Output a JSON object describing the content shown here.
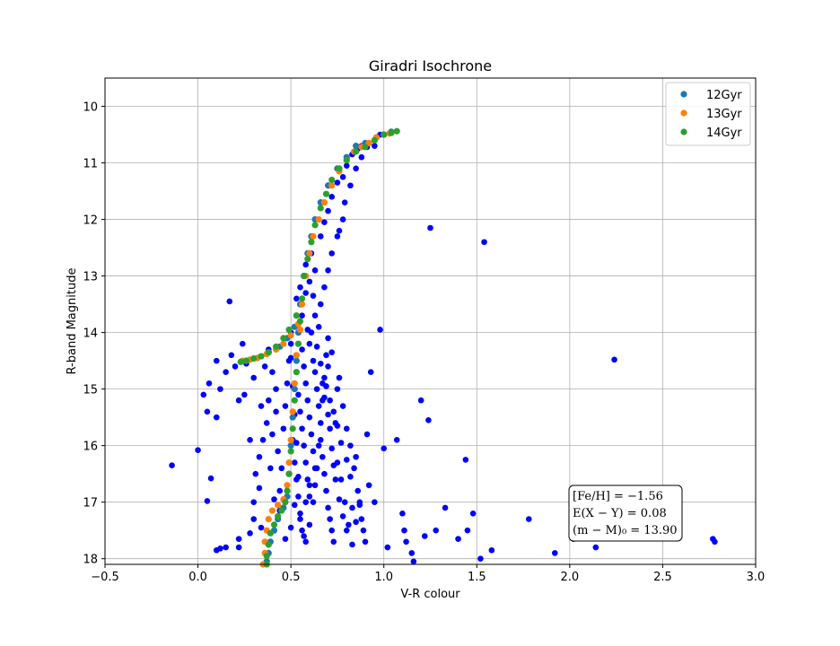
{
  "chart_data": {
    "type": "scatter",
    "title": "Giradri Isochrone",
    "xlabel": "V-R colour",
    "ylabel": "R-band Magnitude",
    "xlim": [
      -0.5,
      3.0
    ],
    "ylim": [
      18.1,
      9.5
    ],
    "y_inverted": true,
    "grid": true,
    "xticks": [
      "−0.5",
      "0.0",
      "0.5",
      "1.0",
      "1.5",
      "2.0",
      "2.5",
      "3.0"
    ],
    "xtick_values": [
      -0.5,
      0.0,
      0.5,
      1.0,
      1.5,
      2.0,
      2.5,
      3.0
    ],
    "yticks": [
      "10",
      "11",
      "12",
      "13",
      "14",
      "15",
      "16",
      "17",
      "18"
    ],
    "ytick_values": [
      10,
      11,
      12,
      13,
      14,
      15,
      16,
      17,
      18
    ],
    "legend_position": "top-right",
    "legend": [
      {
        "label": "12Gyr",
        "color": "#1f77b4"
      },
      {
        "label": "13Gyr",
        "color": "#ff7f0e"
      },
      {
        "label": "14Gyr",
        "color": "#2ca02c"
      }
    ],
    "annotation_lines": [
      "[Fe/H] = −1.56",
      "E(X − Y) = 0.08",
      "(m − M)₀ = 13.90"
    ],
    "annotation_position": "bottom-right",
    "observed_color": "#0000ff",
    "observed_points": [
      [
        0.17,
        13.45
      ],
      [
        0.06,
        14.9
      ],
      [
        0.1,
        14.5
      ],
      [
        0.03,
        15.1
      ],
      [
        0.12,
        15.0
      ],
      [
        0.2,
        14.6
      ],
      [
        0.15,
        14.7
      ],
      [
        0.25,
        15.1
      ],
      [
        0.3,
        14.8
      ],
      [
        0.05,
        15.4
      ],
      [
        0.1,
        15.5
      ],
      [
        0.22,
        15.2
      ],
      [
        0.18,
        14.4
      ],
      [
        0.24,
        14.2
      ],
      [
        0.26,
        14.55
      ],
      [
        0.28,
        15.9
      ],
      [
        0.0,
        16.08
      ],
      [
        -0.14,
        16.35
      ],
      [
        0.07,
        16.58
      ],
      [
        0.05,
        16.98
      ],
      [
        0.1,
        17.85
      ],
      [
        0.12,
        17.82
      ],
      [
        0.15,
        17.8
      ],
      [
        0.22,
        17.65
      ],
      [
        0.22,
        17.8
      ],
      [
        0.28,
        17.55
      ],
      [
        0.3,
        17.3
      ],
      [
        0.34,
        17.45
      ],
      [
        0.31,
        16.5
      ],
      [
        0.33,
        16.2
      ],
      [
        0.33,
        16.75
      ],
      [
        0.3,
        17.0
      ],
      [
        0.35,
        15.9
      ],
      [
        0.37,
        15.6
      ],
      [
        0.38,
        15.2
      ],
      [
        0.36,
        14.6
      ],
      [
        0.38,
        14.3
      ],
      [
        0.4,
        14.7
      ],
      [
        0.42,
        15.0
      ],
      [
        0.42,
        15.4
      ],
      [
        0.4,
        15.8
      ],
      [
        0.43,
        16.1
      ],
      [
        0.45,
        16.4
      ],
      [
        0.44,
        16.8
      ],
      [
        0.46,
        15.7
      ],
      [
        0.47,
        15.3
      ],
      [
        0.48,
        14.9
      ],
      [
        0.49,
        14.5
      ],
      [
        0.5,
        14.2
      ],
      [
        0.5,
        14.0
      ],
      [
        0.51,
        15.9
      ],
      [
        0.52,
        16.3
      ],
      [
        0.53,
        16.6
      ],
      [
        0.54,
        16.9
      ],
      [
        0.55,
        17.2
      ],
      [
        0.56,
        17.5
      ],
      [
        0.58,
        17.7
      ],
      [
        0.6,
        17.4
      ],
      [
        0.62,
        17.0
      ],
      [
        0.63,
        16.7
      ],
      [
        0.64,
        16.4
      ],
      [
        0.65,
        16.0
      ],
      [
        0.66,
        15.6
      ],
      [
        0.67,
        15.2
      ],
      [
        0.68,
        14.8
      ],
      [
        0.69,
        14.4
      ],
      [
        0.7,
        14.1
      ],
      [
        0.56,
        14.3
      ],
      [
        0.57,
        14.6
      ],
      [
        0.58,
        14.9
      ],
      [
        0.59,
        15.2
      ],
      [
        0.6,
        15.5
      ],
      [
        0.61,
        15.8
      ],
      [
        0.62,
        16.1
      ],
      [
        0.63,
        16.4
      ],
      [
        0.6,
        16.7
      ],
      [
        0.58,
        17.0
      ],
      [
        0.55,
        17.3
      ],
      [
        0.57,
        17.6
      ],
      [
        0.54,
        15.1
      ],
      [
        0.55,
        15.4
      ],
      [
        0.56,
        15.7
      ],
      [
        0.57,
        16.0
      ],
      [
        0.58,
        16.3
      ],
      [
        0.59,
        16.6
      ],
      [
        0.6,
        16.9
      ],
      [
        0.61,
        14.0
      ],
      [
        0.62,
        14.5
      ],
      [
        0.63,
        14.7
      ],
      [
        0.64,
        15.0
      ],
      [
        0.65,
        15.3
      ],
      [
        0.66,
        15.9
      ],
      [
        0.67,
        16.2
      ],
      [
        0.68,
        16.5
      ],
      [
        0.69,
        16.8
      ],
      [
        0.7,
        17.1
      ],
      [
        0.71,
        17.3
      ],
      [
        0.72,
        17.5
      ],
      [
        0.73,
        17.7
      ],
      [
        0.74,
        15.6
      ],
      [
        0.75,
        15.0
      ],
      [
        0.76,
        14.8
      ],
      [
        0.78,
        15.3
      ],
      [
        0.8,
        15.7
      ],
      [
        0.82,
        16.0
      ],
      [
        0.84,
        16.4
      ],
      [
        0.86,
        16.8
      ],
      [
        0.88,
        17.3
      ],
      [
        0.9,
        17.7
      ],
      [
        0.92,
        16.7
      ],
      [
        0.95,
        17.0
      ],
      [
        0.75,
        16.3
      ],
      [
        0.77,
        16.6
      ],
      [
        0.79,
        17.0
      ],
      [
        0.81,
        17.4
      ],
      [
        0.83,
        17.1
      ],
      [
        0.85,
        16.2
      ],
      [
        0.87,
        17.0
      ],
      [
        0.89,
        17.5
      ],
      [
        0.91,
        15.8
      ],
      [
        0.93,
        14.7
      ],
      [
        0.98,
        13.95
      ],
      [
        1.0,
        16.05
      ],
      [
        1.02,
        17.8
      ],
      [
        1.07,
        15.9
      ],
      [
        1.1,
        17.2
      ],
      [
        1.11,
        17.5
      ],
      [
        1.12,
        17.7
      ],
      [
        1.15,
        17.9
      ],
      [
        1.16,
        18.05
      ],
      [
        1.2,
        15.2
      ],
      [
        1.22,
        17.6
      ],
      [
        1.24,
        15.55
      ],
      [
        1.25,
        12.15
      ],
      [
        1.28,
        17.5
      ],
      [
        1.33,
        17.1
      ],
      [
        1.4,
        17.65
      ],
      [
        1.44,
        16.25
      ],
      [
        1.45,
        17.5
      ],
      [
        1.48,
        17.2
      ],
      [
        1.52,
        18.0
      ],
      [
        1.54,
        12.4
      ],
      [
        1.58,
        17.85
      ],
      [
        1.78,
        17.3
      ],
      [
        1.92,
        17.9
      ],
      [
        2.02,
        17.65
      ],
      [
        2.14,
        17.8
      ],
      [
        2.24,
        14.48
      ],
      [
        2.77,
        17.65
      ],
      [
        2.78,
        17.7
      ],
      [
        0.34,
        15.3
      ],
      [
        0.39,
        16.4
      ],
      [
        0.41,
        16.95
      ],
      [
        0.44,
        17.15
      ],
      [
        0.47,
        17.65
      ],
      [
        0.5,
        17.45
      ],
      [
        0.52,
        17.05
      ],
      [
        0.54,
        16.55
      ],
      [
        0.53,
        15.95
      ],
      [
        0.52,
        15.45
      ],
      [
        0.51,
        14.95
      ],
      [
        0.5,
        14.45
      ],
      [
        0.65,
        13.9
      ],
      [
        0.63,
        13.7
      ],
      [
        0.62,
        13.35
      ],
      [
        0.58,
        13.3
      ],
      [
        0.55,
        13.2
      ],
      [
        0.53,
        13.4
      ],
      [
        0.56,
        13.7
      ],
      [
        0.59,
        13.95
      ],
      [
        0.6,
        14.2
      ],
      [
        0.64,
        14.25
      ],
      [
        0.66,
        14.55
      ],
      [
        0.67,
        14.9
      ],
      [
        0.68,
        15.15
      ],
      [
        0.7,
        15.45
      ],
      [
        0.71,
        15.7
      ],
      [
        0.72,
        16.05
      ],
      [
        0.73,
        16.35
      ],
      [
        0.74,
        16.6
      ],
      [
        0.76,
        16.95
      ],
      [
        0.78,
        17.25
      ],
      [
        0.8,
        17.5
      ],
      [
        0.83,
        17.75
      ],
      [
        0.85,
        17.35
      ],
      [
        0.87,
        17.05
      ],
      [
        0.72,
        14.35
      ],
      [
        0.7,
        14.6
      ],
      [
        0.69,
        14.95
      ],
      [
        0.71,
        15.2
      ],
      [
        0.73,
        15.4
      ],
      [
        0.75,
        15.65
      ],
      [
        0.77,
        15.95
      ],
      [
        0.8,
        16.25
      ],
      [
        0.82,
        16.55
      ],
      [
        0.75,
        12.3
      ],
      [
        0.72,
        12.6
      ],
      [
        0.7,
        12.9
      ],
      [
        0.68,
        13.2
      ],
      [
        0.66,
        13.5
      ],
      [
        0.79,
        11.7
      ],
      [
        0.82,
        11.4
      ],
      [
        0.85,
        11.1
      ],
      [
        0.88,
        10.9
      ],
      [
        0.78,
        12.0
      ],
      [
        0.76,
        12.2
      ],
      [
        0.8,
        11.05
      ],
      [
        0.61,
        12.6
      ],
      [
        0.63,
        12.9
      ],
      [
        0.6,
        13.1
      ],
      [
        0.58,
        12.8
      ],
      [
        0.66,
        12.3
      ],
      [
        0.68,
        12.05
      ],
      [
        0.7,
        11.85
      ],
      [
        0.72,
        11.6
      ],
      [
        0.75,
        11.35
      ],
      [
        0.78,
        11.25
      ],
      [
        0.83,
        10.85
      ],
      [
        0.86,
        10.75
      ],
      [
        0.88,
        10.7
      ],
      [
        0.91,
        10.72
      ],
      [
        0.95,
        10.7
      ],
      [
        0.98,
        10.5
      ]
    ],
    "series": [
      {
        "name": "12Gyr",
        "color": "#1f77b4",
        "points": [
          [
            0.37,
            18.05
          ],
          [
            0.38,
            17.9
          ],
          [
            0.39,
            17.7
          ],
          [
            0.41,
            17.5
          ],
          [
            0.43,
            17.3
          ],
          [
            0.46,
            17.1
          ],
          [
            0.48,
            16.9
          ],
          [
            0.49,
            16.5
          ],
          [
            0.5,
            16.0
          ],
          [
            0.51,
            15.5
          ],
          [
            0.52,
            15.0
          ],
          [
            0.53,
            14.5
          ],
          [
            0.54,
            14.0
          ],
          [
            0.55,
            13.5
          ],
          [
            0.57,
            13.0
          ],
          [
            0.59,
            12.6
          ],
          [
            0.61,
            12.3
          ],
          [
            0.63,
            12.0
          ],
          [
            0.66,
            11.7
          ],
          [
            0.7,
            11.4
          ],
          [
            0.75,
            11.1
          ],
          [
            0.8,
            10.9
          ],
          [
            0.85,
            10.7
          ],
          [
            0.9,
            10.65
          ],
          [
            0.96,
            10.55
          ],
          [
            1.0,
            10.5
          ],
          [
            1.04,
            10.45
          ],
          [
            0.52,
            13.9
          ],
          [
            0.48,
            14.1
          ],
          [
            0.44,
            14.25
          ],
          [
            0.38,
            14.35
          ],
          [
            0.32,
            14.45
          ],
          [
            0.26,
            14.5
          ]
        ]
      },
      {
        "name": "13Gyr",
        "color": "#ff7f0e",
        "points": [
          [
            0.35,
            18.1
          ],
          [
            0.36,
            17.9
          ],
          [
            0.36,
            17.7
          ],
          [
            0.37,
            17.5
          ],
          [
            0.38,
            17.3
          ],
          [
            0.4,
            17.15
          ],
          [
            0.43,
            17.05
          ],
          [
            0.46,
            16.95
          ],
          [
            0.48,
            16.7
          ],
          [
            0.49,
            16.3
          ],
          [
            0.5,
            15.9
          ],
          [
            0.51,
            15.4
          ],
          [
            0.52,
            14.9
          ],
          [
            0.53,
            14.4
          ],
          [
            0.55,
            13.95
          ],
          [
            0.56,
            13.5
          ],
          [
            0.58,
            13.0
          ],
          [
            0.6,
            12.6
          ],
          [
            0.62,
            12.3
          ],
          [
            0.65,
            12.0
          ],
          [
            0.68,
            11.7
          ],
          [
            0.72,
            11.4
          ],
          [
            0.76,
            11.15
          ],
          [
            0.8,
            10.95
          ],
          [
            0.84,
            10.8
          ],
          [
            0.88,
            10.72
          ],
          [
            0.92,
            10.65
          ],
          [
            0.96,
            10.55
          ],
          [
            1.0,
            10.5
          ],
          [
            1.03,
            10.48
          ],
          [
            0.54,
            13.85
          ],
          [
            0.5,
            14.05
          ],
          [
            0.46,
            14.2
          ],
          [
            0.42,
            14.3
          ],
          [
            0.37,
            14.38
          ],
          [
            0.32,
            14.45
          ],
          [
            0.28,
            14.48
          ],
          [
            0.24,
            14.5
          ]
        ]
      },
      {
        "name": "14Gyr",
        "color": "#2ca02c",
        "points": [
          [
            0.37,
            18.1
          ],
          [
            0.37,
            17.95
          ],
          [
            0.38,
            17.75
          ],
          [
            0.39,
            17.55
          ],
          [
            0.41,
            17.4
          ],
          [
            0.43,
            17.25
          ],
          [
            0.45,
            17.15
          ],
          [
            0.47,
            17.0
          ],
          [
            0.48,
            16.8
          ],
          [
            0.49,
            16.5
          ],
          [
            0.5,
            16.1
          ],
          [
            0.51,
            15.7
          ],
          [
            0.52,
            15.2
          ],
          [
            0.53,
            14.7
          ],
          [
            0.54,
            14.2
          ],
          [
            0.55,
            13.8
          ],
          [
            0.56,
            13.4
          ],
          [
            0.57,
            13.0
          ],
          [
            0.59,
            12.7
          ],
          [
            0.61,
            12.4
          ],
          [
            0.63,
            12.1
          ],
          [
            0.66,
            11.8
          ],
          [
            0.69,
            11.55
          ],
          [
            0.72,
            11.3
          ],
          [
            0.76,
            11.1
          ],
          [
            0.8,
            10.95
          ],
          [
            0.85,
            10.8
          ],
          [
            0.9,
            10.72
          ],
          [
            0.95,
            10.6
          ],
          [
            1.0,
            10.5
          ],
          [
            1.04,
            10.47
          ],
          [
            1.07,
            10.44
          ],
          [
            0.53,
            13.7
          ],
          [
            0.49,
            13.95
          ],
          [
            0.46,
            14.1
          ],
          [
            0.42,
            14.25
          ],
          [
            0.38,
            14.35
          ],
          [
            0.34,
            14.42
          ],
          [
            0.3,
            14.46
          ],
          [
            0.26,
            14.5
          ],
          [
            0.23,
            14.52
          ]
        ]
      }
    ]
  }
}
